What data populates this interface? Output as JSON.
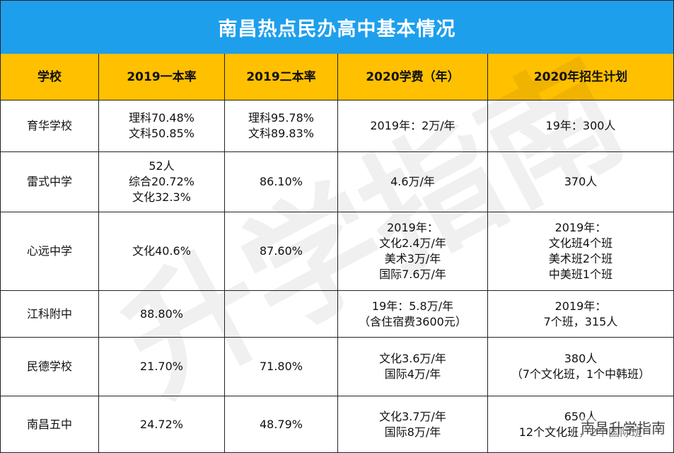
{
  "header": {
    "title": "南昌热点民办高中基本情况"
  },
  "table": {
    "columns": [
      "学校",
      "2019一本率",
      "2019二本率",
      "2020学费（年）",
      "2020年招生计划"
    ],
    "rows": [
      [
        [
          "育华学校"
        ],
        [
          "理科70.48%",
          "文科50.85%"
        ],
        [
          "理科95.78%",
          "文科89.83%"
        ],
        [
          "2019年：2万/年"
        ],
        [
          "19年：300人"
        ]
      ],
      [
        [
          "雷式中学"
        ],
        [
          "52人",
          "综合20.72%",
          "文化32.3%"
        ],
        [
          "86.10%"
        ],
        [
          "4.6万/年"
        ],
        [
          "370人"
        ]
      ],
      [
        [
          "心远中学"
        ],
        [
          "文化40.6%"
        ],
        [
          "87.60%"
        ],
        [
          "2019年：",
          "文化2.4万/年",
          "美术3万/年",
          "国际7.6万/年"
        ],
        [
          "2019年：",
          "文化班4个班",
          "美术班2个班",
          "中美班1个班"
        ]
      ],
      [
        [
          "江科附中"
        ],
        [
          "88.80%"
        ],
        [],
        [
          "19年：5.8万/年",
          "（含住宿费3600元）"
        ],
        [
          "2019年：",
          "7个班，315人"
        ]
      ],
      [
        [
          "民德学校"
        ],
        [
          "21.70%"
        ],
        [
          "71.80%"
        ],
        [
          "文化3.6万/年",
          "国际4万/年"
        ],
        [
          "380人",
          "（7个文化班，1个中韩班）"
        ]
      ],
      [
        [
          "南昌五中"
        ],
        [
          "24.72%"
        ],
        [
          "48.79%"
        ],
        [
          "文化3.7万/年",
          "国际8万/年"
        ],
        [
          "650人",
          "12个文化班，2个国际班"
        ]
      ]
    ]
  },
  "watermark": "升学指南",
  "brand": "南昌升学指南"
}
